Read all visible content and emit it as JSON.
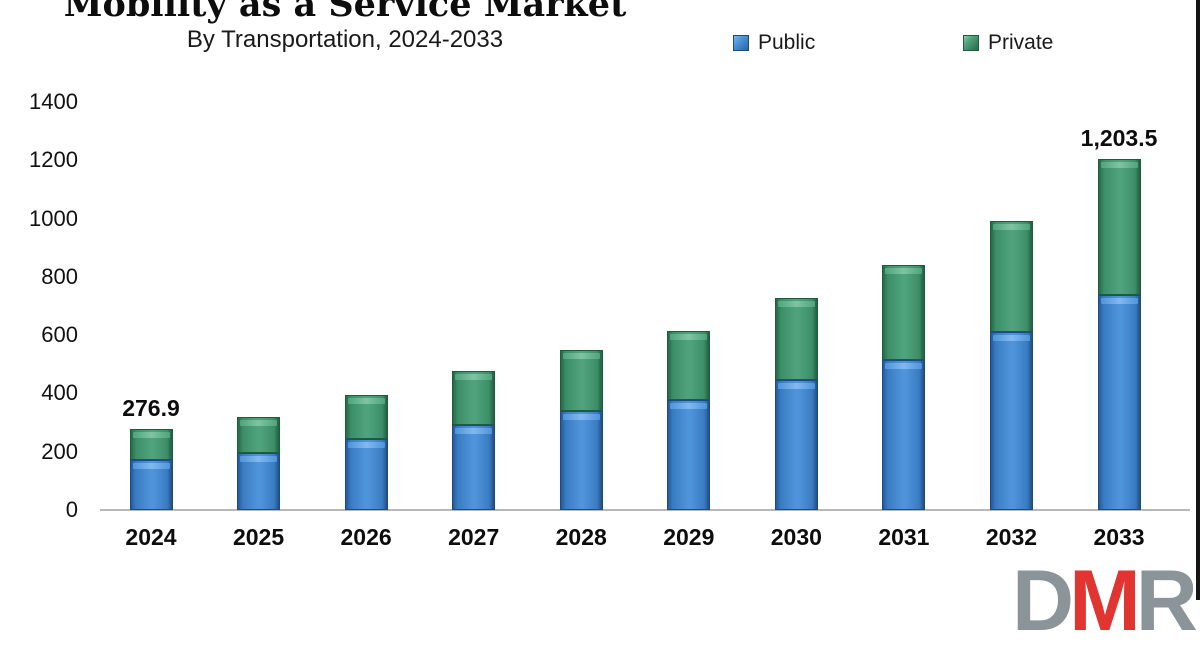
{
  "header": {
    "title": "Mobility as a Service Market",
    "subtitle": "By Transportation, 2024-2033"
  },
  "legend": {
    "items": [
      {
        "label": "Public",
        "color": "#3d7fc6"
      },
      {
        "label": "Private",
        "color": "#44966f"
      }
    ]
  },
  "chart_data": {
    "type": "bar",
    "stacked": true,
    "title": "Mobility as a Service Market",
    "subtitle": "By Transportation, 2024-2033",
    "categories": [
      "2024",
      "2025",
      "2026",
      "2027",
      "2028",
      "2029",
      "2030",
      "2031",
      "2032",
      "2033"
    ],
    "series": [
      {
        "name": "Public",
        "color": "#3d7fc6",
        "values": [
          169.9,
          196,
          244,
          293,
          338,
          377,
          446,
          516,
          612,
          737.7
        ]
      },
      {
        "name": "Private",
        "color": "#44966f",
        "values": [
          107.0,
          124,
          152,
          183,
          212,
          236,
          281,
          325,
          381,
          465.8
        ]
      }
    ],
    "totals_labeled": {
      "2024": "276.9",
      "2033": "1,203.5"
    },
    "ylim": [
      0,
      1400
    ],
    "yticks": [
      "0",
      "200",
      "400",
      "600",
      "800",
      "1000",
      "1200",
      "1400"
    ],
    "grid": false,
    "legend_position": "top"
  },
  "logo": {
    "letters": [
      {
        "char": "D",
        "color": "#8b9498"
      },
      {
        "char": "M",
        "color": "#e03531"
      },
      {
        "char": "R",
        "color": "#8b9498"
      }
    ]
  }
}
